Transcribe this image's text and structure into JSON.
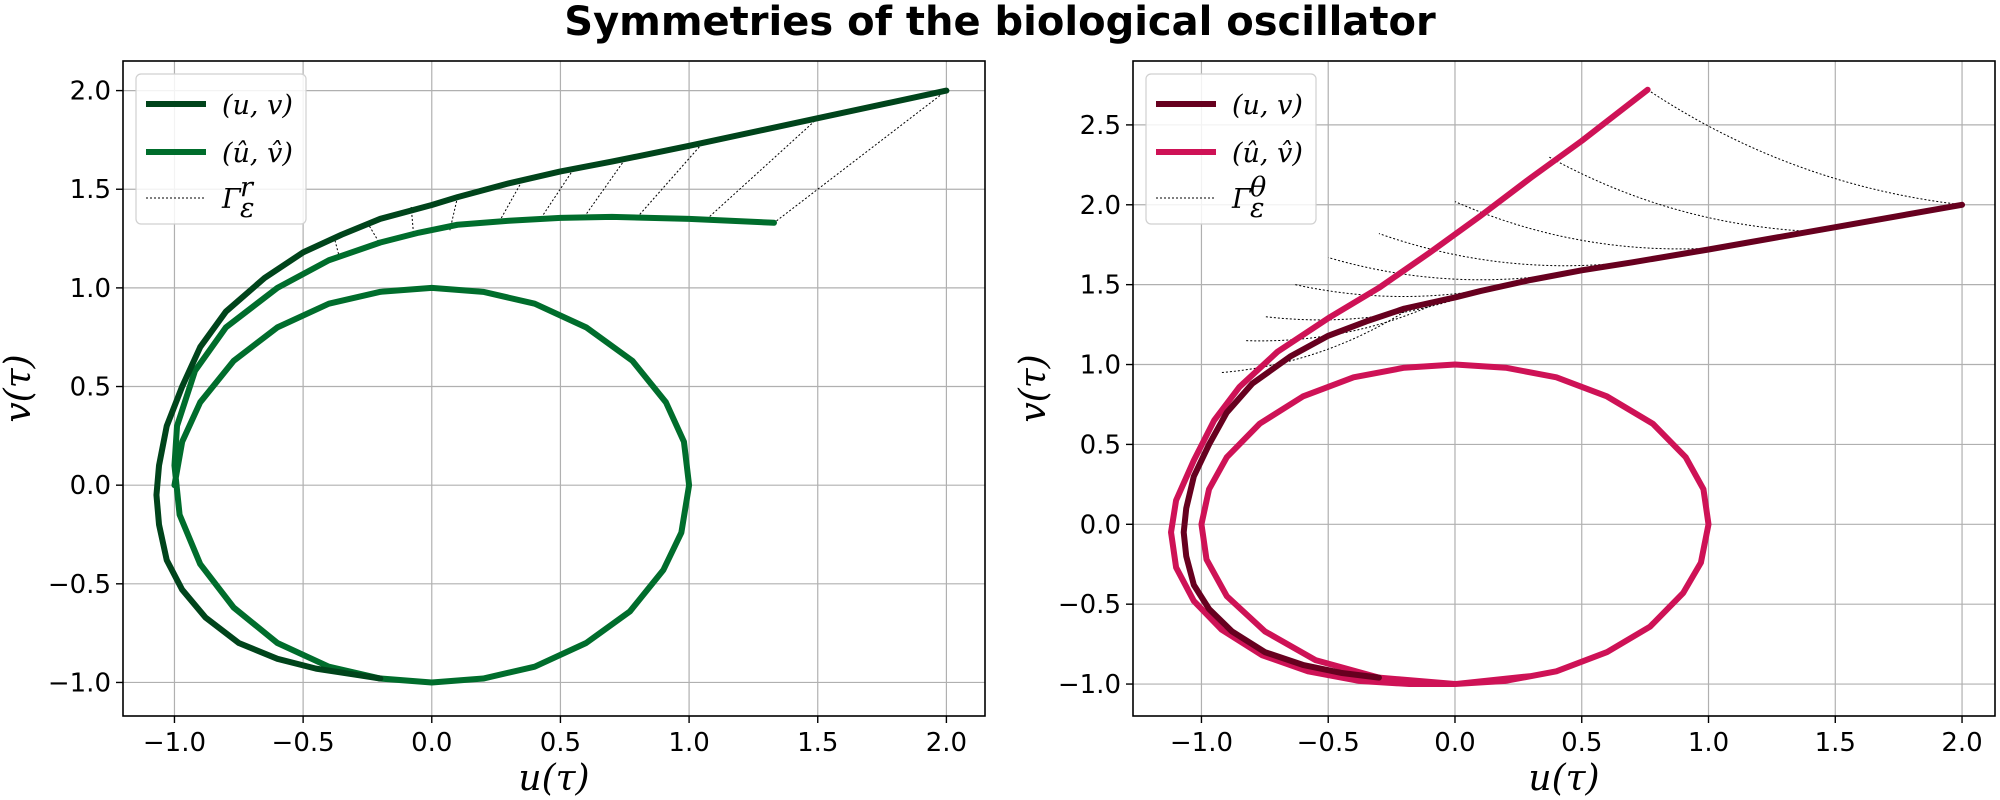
{
  "figure": {
    "title": "Symmetries of the biological oscillator"
  },
  "chart_data": [
    {
      "type": "line",
      "panel": "left",
      "xlabel": "u(τ)",
      "ylabel": "v(τ)",
      "xlim": [
        -1.2,
        2.15
      ],
      "ylim": [
        -1.17,
        2.15
      ],
      "xticks": [
        -1.0,
        -0.5,
        0.0,
        0.5,
        1.0,
        1.5,
        2.0
      ],
      "yticks": [
        -1.0,
        -0.5,
        0.0,
        0.5,
        1.0,
        1.5,
        2.0
      ],
      "xtick_labels": [
        "−1.0",
        "−0.5",
        "0.0",
        "0.5",
        "1.0",
        "1.5",
        "2.0"
      ],
      "ytick_labels": [
        "−1.0",
        "−0.5",
        "0.0",
        "0.5",
        "1.0",
        "1.5",
        "2.0"
      ],
      "grid": true,
      "legend_position": "top-left",
      "colors": {
        "original": "#00441b",
        "transformed": "#006d2c",
        "connector": "#000000"
      },
      "legend": [
        "(u, v)",
        "(û, v̂)",
        "Γ",
        "ε",
        "r"
      ],
      "series": [
        {
          "name": "(u, v)",
          "x": [
            2.0,
            1.5,
            1.0,
            0.7,
            0.5,
            0.3,
            0.1,
            0.0,
            -0.2,
            -0.35,
            -0.5,
            -0.65,
            -0.8,
            -0.9,
            -0.97,
            -1.03,
            -1.06,
            -1.07,
            -1.06,
            -1.03,
            -0.97,
            -0.88,
            -0.75,
            -0.6,
            -0.45,
            -0.3,
            -0.2
          ],
          "y": [
            2.0,
            1.86,
            1.72,
            1.64,
            1.59,
            1.53,
            1.46,
            1.42,
            1.35,
            1.27,
            1.18,
            1.05,
            0.88,
            0.7,
            0.5,
            0.3,
            0.1,
            -0.05,
            -0.2,
            -0.38,
            -0.53,
            -0.67,
            -0.8,
            -0.88,
            -0.93,
            -0.96,
            -0.98
          ]
        },
        {
          "name": "(û, v̂)",
          "x": [
            1.33,
            1.0,
            0.7,
            0.5,
            0.3,
            0.1,
            -0.05,
            -0.2,
            -0.4,
            -0.6,
            -0.8,
            -0.92,
            -0.99,
            -1.0,
            -0.98,
            -0.9,
            -0.77,
            -0.6,
            -0.4,
            -0.2,
            0.0,
            0.2,
            0.4,
            0.6,
            0.77,
            0.9,
            0.97,
            1.0,
            0.98,
            0.91,
            0.78,
            0.6,
            0.4,
            0.2,
            0.0,
            -0.2,
            -0.4,
            -0.6,
            -0.77,
            -0.9,
            -0.97,
            -1.0
          ],
          "y": [
            1.33,
            1.35,
            1.36,
            1.355,
            1.34,
            1.32,
            1.28,
            1.23,
            1.14,
            1.0,
            0.8,
            0.58,
            0.3,
            0.1,
            -0.15,
            -0.4,
            -0.62,
            -0.8,
            -0.92,
            -0.98,
            -1.0,
            -0.98,
            -0.92,
            -0.8,
            -0.64,
            -0.43,
            -0.24,
            0.0,
            0.22,
            0.42,
            0.63,
            0.8,
            0.92,
            0.98,
            1.0,
            0.98,
            0.92,
            0.8,
            0.63,
            0.42,
            0.22,
            0.0
          ]
        },
        {
          "name": "Γ_ε^r",
          "style": "dotted",
          "segments": [
            [
              2.0,
              2.0,
              1.33,
              1.33
            ],
            [
              1.5,
              1.86,
              1.07,
              1.35
            ],
            [
              1.05,
              1.73,
              0.8,
              1.36
            ],
            [
              0.75,
              1.65,
              0.59,
              1.355
            ],
            [
              0.55,
              1.6,
              0.42,
              1.345
            ],
            [
              0.35,
              1.54,
              0.26,
              1.33
            ],
            [
              0.1,
              1.46,
              0.07,
              1.29
            ],
            [
              -0.08,
              1.41,
              -0.07,
              1.26
            ],
            [
              -0.25,
              1.33,
              -0.2,
              1.22
            ],
            [
              -0.38,
              1.26,
              -0.36,
              1.16
            ]
          ]
        }
      ]
    },
    {
      "type": "line",
      "panel": "right",
      "xlabel": "u(τ)",
      "ylabel": "v(τ)",
      "xlim": [
        -1.27,
        2.13
      ],
      "ylim": [
        -1.2,
        2.9
      ],
      "xticks": [
        -1.0,
        -0.5,
        0.0,
        0.5,
        1.0,
        1.5,
        2.0
      ],
      "yticks": [
        -1.0,
        -0.5,
        0.0,
        0.5,
        1.0,
        1.5,
        2.0,
        2.5
      ],
      "xtick_labels": [
        "−1.0",
        "−0.5",
        "0.0",
        "0.5",
        "1.0",
        "1.5",
        "2.0"
      ],
      "ytick_labels": [
        "−1.0",
        "−0.5",
        "0.0",
        "0.5",
        "1.0",
        "1.5",
        "2.0",
        "2.5"
      ],
      "grid": true,
      "legend_position": "top-left",
      "colors": {
        "original": "#67001f",
        "transformed": "#ce1256",
        "connector": "#000000"
      },
      "legend": [
        "(u, v)",
        "(û, v̂)",
        "Γ",
        "ε",
        "θ"
      ],
      "series": [
        {
          "name": "(u, v)",
          "x": [
            2.0,
            1.5,
            1.0,
            0.7,
            0.5,
            0.3,
            0.1,
            0.0,
            -0.2,
            -0.35,
            -0.5,
            -0.65,
            -0.8,
            -0.9,
            -0.97,
            -1.03,
            -1.06,
            -1.07,
            -1.06,
            -1.03,
            -0.97,
            -0.88,
            -0.75,
            -0.6,
            -0.45,
            -0.3
          ],
          "y": [
            2.0,
            1.86,
            1.72,
            1.64,
            1.59,
            1.53,
            1.46,
            1.42,
            1.35,
            1.27,
            1.18,
            1.05,
            0.88,
            0.7,
            0.5,
            0.3,
            0.1,
            -0.05,
            -0.2,
            -0.38,
            -0.53,
            -0.67,
            -0.8,
            -0.88,
            -0.93,
            -0.96
          ]
        },
        {
          "name": "(û, v̂)",
          "x": [
            0.76,
            0.5,
            0.3,
            0.1,
            -0.1,
            -0.3,
            -0.5,
            -0.7,
            -0.85,
            -0.95,
            -1.03,
            -1.1,
            -1.12,
            -1.1,
            -1.03,
            -0.92,
            -0.76,
            -0.58,
            -0.38,
            -0.18,
            0.0,
            0.2,
            0.4,
            0.6,
            0.77,
            0.9,
            0.97,
            1.0,
            0.98,
            0.91,
            0.78,
            0.6,
            0.4,
            0.2,
            0.0,
            -0.2,
            -0.4,
            -0.6,
            -0.77,
            -0.9,
            -0.97,
            -1.0,
            -0.98,
            -0.9,
            -0.75,
            -0.55,
            -0.3,
            0.0,
            0.3
          ],
          "y": [
            2.72,
            2.4,
            2.17,
            1.93,
            1.7,
            1.48,
            1.29,
            1.08,
            0.86,
            0.65,
            0.4,
            0.15,
            -0.05,
            -0.27,
            -0.48,
            -0.66,
            -0.82,
            -0.92,
            -0.98,
            -1.0,
            -1.0,
            -0.98,
            -0.92,
            -0.8,
            -0.64,
            -0.43,
            -0.24,
            0.0,
            0.22,
            0.42,
            0.63,
            0.8,
            0.92,
            0.98,
            1.0,
            0.98,
            0.92,
            0.8,
            0.63,
            0.42,
            0.22,
            0.0,
            -0.22,
            -0.45,
            -0.67,
            -0.85,
            -0.96,
            -1.0,
            -0.95
          ]
        },
        {
          "name": "Γ_ε^θ",
          "style": "dotted",
          "arcs": [
            [
              2.0,
              2.0,
              0.76,
              2.72
            ],
            [
              1.45,
              1.83,
              0.37,
              2.3
            ],
            [
              1.02,
              1.73,
              0.0,
              2.02
            ],
            [
              0.73,
              1.65,
              -0.3,
              1.82
            ],
            [
              0.5,
              1.59,
              -0.5,
              1.67
            ],
            [
              0.3,
              1.53,
              -0.63,
              1.5
            ],
            [
              0.1,
              1.46,
              -0.75,
              1.3
            ],
            [
              -0.05,
              1.4,
              -0.83,
              1.15
            ],
            [
              -0.2,
              1.33,
              -0.92,
              0.95
            ]
          ]
        }
      ]
    }
  ]
}
